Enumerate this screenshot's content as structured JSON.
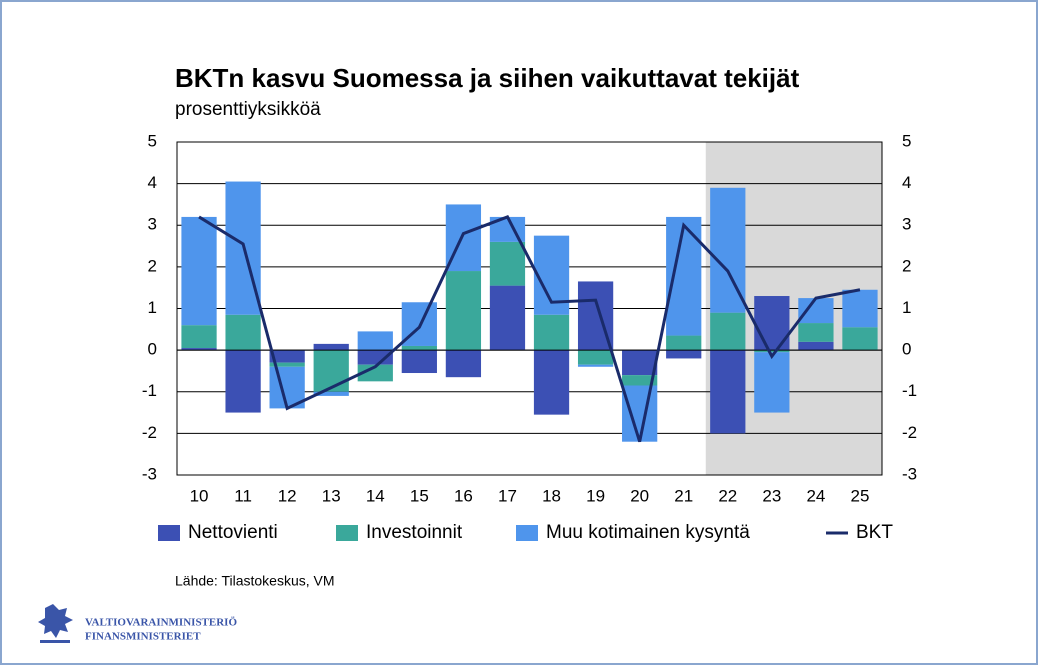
{
  "chart_data": {
    "type": "bar",
    "title": "BKTn kasvu Suomessa ja siihen vaikuttavat tekijät",
    "subtitle": "prosenttiyksikköä",
    "categories": [
      "10",
      "11",
      "12",
      "13",
      "14",
      "15",
      "16",
      "17",
      "18",
      "19",
      "20",
      "21",
      "22",
      "23",
      "24",
      "25"
    ],
    "series": [
      {
        "name": "Nettovienti",
        "color": "#3c50b4",
        "type": "bar",
        "values": [
          0.05,
          -1.5,
          -0.3,
          0.15,
          -0.35,
          -0.55,
          -0.65,
          1.55,
          -1.55,
          1.65,
          -0.6,
          -0.2,
          -2.0,
          1.3,
          0.2,
          0.0
        ]
      },
      {
        "name": "Investoinnit",
        "color": "#3aa89b",
        "type": "bar",
        "values": [
          0.55,
          0.85,
          -0.1,
          -1.0,
          -0.4,
          0.1,
          1.9,
          1.05,
          0.85,
          -0.35,
          -0.25,
          0.35,
          0.9,
          -0.05,
          0.45,
          0.55
        ]
      },
      {
        "name": "Muu kotimainen kysyntä",
        "color": "#4f95ec",
        "type": "bar",
        "values": [
          2.6,
          3.2,
          -1.0,
          -0.1,
          0.45,
          1.05,
          1.6,
          0.6,
          1.9,
          -0.05,
          -1.35,
          2.85,
          3.0,
          -1.45,
          0.6,
          0.9
        ]
      },
      {
        "name": "BKT",
        "color": "#1a2b6a",
        "type": "line",
        "values": [
          3.2,
          2.55,
          -1.4,
          -0.9,
          -0.4,
          0.55,
          2.8,
          3.2,
          1.15,
          1.2,
          -2.2,
          3.0,
          1.9,
          -0.15,
          1.25,
          1.45
        ]
      }
    ],
    "forecast_from": "22",
    "ylim": [
      -3,
      5
    ],
    "yticks": [
      -3,
      -2,
      -1,
      0,
      1,
      2,
      3,
      4,
      5
    ],
    "grid": true,
    "source": "Lähde: Tilastokeskus, VM",
    "logo": [
      "VALTIOVARAINMINISTERIÖ",
      "FINANSMINISTERIET"
    ]
  }
}
